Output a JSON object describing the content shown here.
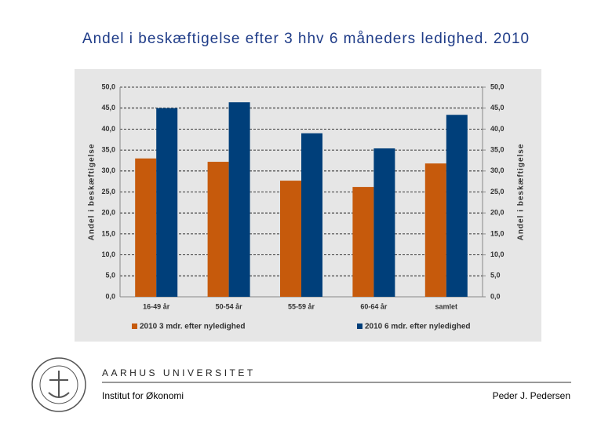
{
  "chart_data": {
    "type": "bar",
    "title": "Andel i beskæftigelse efter 3 hhv 6 måneders ledighed. 2010",
    "categories": [
      "16-49 år",
      "50-54 år",
      "55-59 år",
      "60-64 år",
      "samlet"
    ],
    "series": [
      {
        "name": "2010 3 mdr. efter nyledighed",
        "color": "#c65a0c",
        "values": [
          33.0,
          32.2,
          27.7,
          26.2,
          31.8
        ]
      },
      {
        "name": "2010 6 mdr. efter nyledighed",
        "color": "#003f7a",
        "values": [
          45.0,
          46.4,
          39.0,
          35.4,
          43.4
        ]
      }
    ],
    "y_label": "Andel i beskæftigelse",
    "y2_label": "Andel i beskæftigelse",
    "ylim": [
      0,
      50
    ],
    "yticks": [
      {
        "value": 0,
        "label": "0,0"
      },
      {
        "value": 5,
        "label": "5,0"
      },
      {
        "value": 10,
        "label": "10,0"
      },
      {
        "value": 15,
        "label": "15,0"
      },
      {
        "value": 20,
        "label": "20,0"
      },
      {
        "value": 25,
        "label": "25,0"
      },
      {
        "value": 30,
        "label": "30,0"
      },
      {
        "value": 35,
        "label": "35,0"
      },
      {
        "value": 40,
        "label": "40,0"
      },
      {
        "value": 45,
        "label": "45,0"
      },
      {
        "value": 50,
        "label": "50,0"
      }
    ],
    "y2lim": [
      0,
      50
    ],
    "y2ticks": [
      {
        "value": 0,
        "label": "0,0"
      },
      {
        "value": 5,
        "label": "5,0"
      },
      {
        "value": 10,
        "label": "10,0"
      },
      {
        "value": 15,
        "label": "15,0"
      },
      {
        "value": 20,
        "label": "20,0"
      },
      {
        "value": 25,
        "label": "25,0"
      },
      {
        "value": 30,
        "label": "30,0"
      },
      {
        "value": 35,
        "label": "35,0"
      },
      {
        "value": 40,
        "label": "40,0"
      },
      {
        "value": 45,
        "label": "45,0"
      },
      {
        "value": 50,
        "label": "50,0"
      }
    ],
    "grid": true,
    "legend": "bottom"
  },
  "footer": {
    "university": "AARHUS UNIVERSITET",
    "department": "Institut for Økonomi",
    "author": "Peder J. Pedersen"
  }
}
